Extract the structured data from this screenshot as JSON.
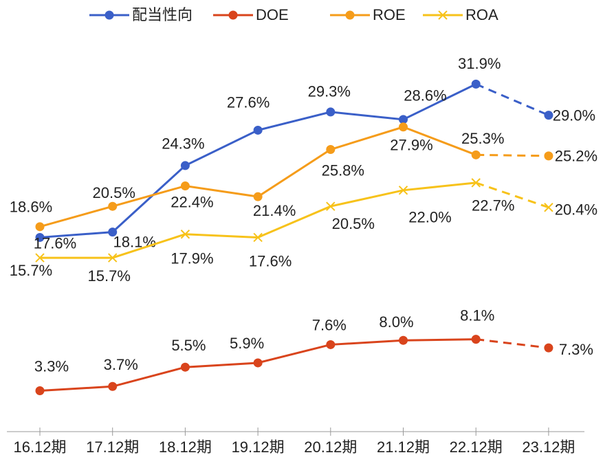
{
  "chart_data": {
    "type": "line",
    "categories": [
      "16.12期",
      "17.12期",
      "18.12期",
      "19.12期",
      "20.12期",
      "21.12期",
      "22.12期",
      "23.12期"
    ],
    "series": [
      {
        "name": "配当性向",
        "color": "#3a5fc8",
        "marker": "circle",
        "values": [
          17.6,
          18.1,
          24.3,
          27.6,
          29.3,
          28.6,
          31.9,
          29.0
        ],
        "value_labels": [
          "17.6%",
          "18.1%",
          "24.3%",
          "27.6%",
          "29.3%",
          "28.6%",
          "31.9%",
          "29.0%"
        ]
      },
      {
        "name": "DOE",
        "color": "#d9441c",
        "marker": "circle",
        "values": [
          3.3,
          3.7,
          5.5,
          5.9,
          7.6,
          8.0,
          8.1,
          7.3
        ],
        "value_labels": [
          "3.3%",
          "3.7%",
          "5.5%",
          "5.9%",
          "7.6%",
          "8.0%",
          "8.1%",
          "7.3%"
        ]
      },
      {
        "name": "ROE",
        "color": "#f59c1a",
        "marker": "circle",
        "values": [
          18.6,
          20.5,
          22.4,
          21.4,
          25.8,
          27.9,
          25.3,
          25.2
        ],
        "value_labels": [
          "18.6%",
          "20.5%",
          "22.4%",
          "21.4%",
          "25.8%",
          "27.9%",
          "25.3%",
          "25.2%"
        ]
      },
      {
        "name": "ROA",
        "color": "#f7c21a",
        "marker": "x",
        "values": [
          15.7,
          15.7,
          17.9,
          17.6,
          20.5,
          22.0,
          22.7,
          20.4
        ],
        "value_labels": [
          "15.7%",
          "15.7%",
          "17.9%",
          "17.6%",
          "20.5%",
          "22.0%",
          "22.7%",
          "20.4%"
        ]
      }
    ],
    "ylim": [
      0,
      35
    ],
    "dashed_from": 6,
    "legend": "top"
  }
}
